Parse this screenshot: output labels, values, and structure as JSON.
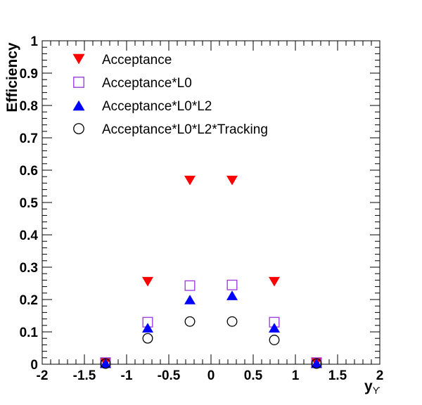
{
  "chart_data": {
    "type": "scatter",
    "xlabel": "y",
    "xlabel_subscript": "ϒ",
    "ylabel": "Efficiency",
    "xlim": [
      -2,
      2
    ],
    "ylim": [
      0,
      1
    ],
    "x_ticks": [
      "-2",
      "-1.5",
      "-1",
      "-0.5",
      "0",
      "0.5",
      "1",
      "1.5",
      "2"
    ],
    "y_ticks": [
      "0",
      "0.1",
      "0.2",
      "0.3",
      "0.4",
      "0.5",
      "0.6",
      "0.7",
      "0.8",
      "0.9",
      "1"
    ],
    "legend_position": "top-left",
    "grid": false,
    "series": [
      {
        "name": "Acceptance",
        "marker": "triangle-down",
        "color": "#ff0000",
        "x": [
          -1.25,
          -0.75,
          -0.25,
          0.25,
          0.75,
          1.25
        ],
        "y": [
          0.005,
          0.255,
          0.568,
          0.568,
          0.255,
          0.005
        ]
      },
      {
        "name": "Acceptance*L0",
        "marker": "open-square",
        "color": "#a040e0",
        "x": [
          -1.25,
          -0.75,
          -0.25,
          0.25,
          0.75,
          1.25
        ],
        "y": [
          0.005,
          0.13,
          0.243,
          0.245,
          0.13,
          0.005
        ]
      },
      {
        "name": "Acceptance*L0*L2",
        "marker": "triangle-up",
        "color": "#0000ff",
        "x": [
          -1.25,
          -0.75,
          -0.25,
          0.25,
          0.75,
          1.25
        ],
        "y": [
          0.003,
          0.113,
          0.2,
          0.213,
          0.113,
          0.003
        ]
      },
      {
        "name": "Acceptance*L0*L2*Tracking",
        "marker": "open-circle",
        "color": "#000000",
        "x": [
          -1.25,
          -0.75,
          -0.25,
          0.25,
          0.75,
          1.25
        ],
        "y": [
          0.002,
          0.08,
          0.132,
          0.132,
          0.075,
          0.002
        ]
      }
    ]
  }
}
